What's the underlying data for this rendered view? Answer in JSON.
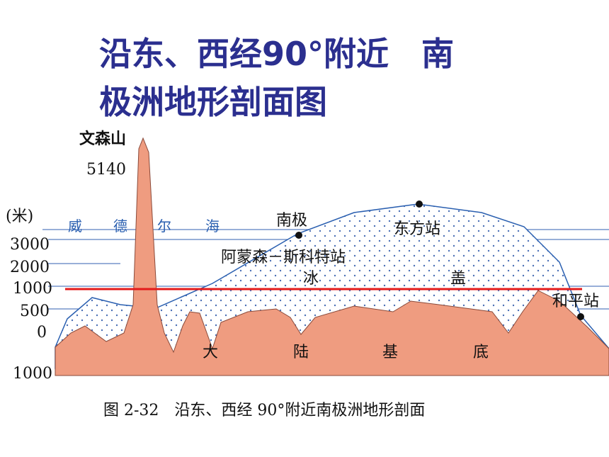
{
  "title": {
    "lines": [
      "沿东、西经90°附近　南",
      "极洲地形剖面图"
    ]
  },
  "axis": {
    "unit": "(米)",
    "labels": [
      "3000",
      "2000",
      "1000",
      "500",
      "0",
      "1000"
    ]
  },
  "labels": {
    "mountain": "文森山",
    "mountain_height": "5140",
    "sea": [
      "威",
      "德",
      "尔",
      "海"
    ],
    "south_pole": "南极",
    "vostok": "东方站",
    "amundsen": "阿蒙森－斯科特站",
    "ice": [
      "冰",
      "盖"
    ],
    "mirny": "和平站",
    "bedrock": [
      "大",
      "陆",
      "基",
      "底"
    ]
  },
  "caption": "图 2-32　沿东、西经 90°附近南极洲地形剖面"
}
